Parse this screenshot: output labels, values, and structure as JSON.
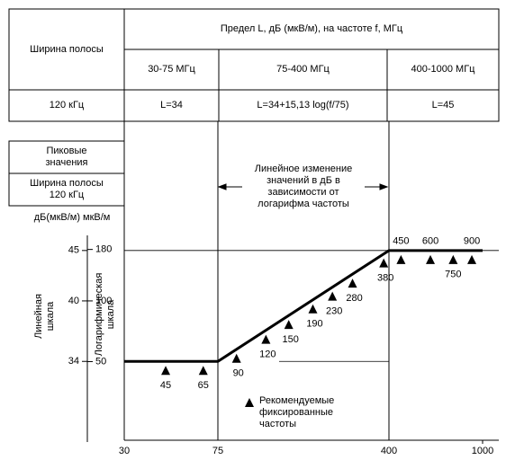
{
  "table": {
    "band_header": "Ширина полосы",
    "limit_header": "Предел L, дБ (мкВ/м), на частоте f, МГц",
    "ranges": [
      "30-75 МГц",
      "75-400 МГц",
      "400-1000 МГц"
    ],
    "row": [
      "120 кГц",
      "L=34",
      "L=34+15,13 log(f/75)",
      "L=45"
    ]
  },
  "left_boxes": [
    "Пиковые значения",
    "Ширина полосы 120 кГц"
  ],
  "chart_data": {
    "type": "line",
    "ylabel": "дБ(мкВ/м)",
    "y2label": "мкВ/м",
    "ylabel_rotated": "Линейная шкала",
    "y2label_rotated": "Логарифмическая шкала",
    "annotation": "Линейное изменение значений в дБ в зависимости от логарифма частоты",
    "x": [
      30,
      75,
      400,
      1000
    ],
    "values": [
      34,
      34,
      45,
      45
    ],
    "color": "#000000",
    "xlim": [
      30,
      1000
    ],
    "xticks": [
      30,
      75,
      400,
      1000
    ],
    "xlog": true,
    "ylim": [
      26,
      46.5
    ],
    "yticks": [
      34,
      40,
      45
    ],
    "y2ticks": [
      50,
      100,
      180
    ],
    "recommended": {
      "name": "Рекомендуемые фиксированные частоты",
      "x": [
        45,
        65,
        90,
        120,
        150,
        190,
        230,
        280,
        380,
        450,
        600,
        750,
        900
      ]
    }
  }
}
